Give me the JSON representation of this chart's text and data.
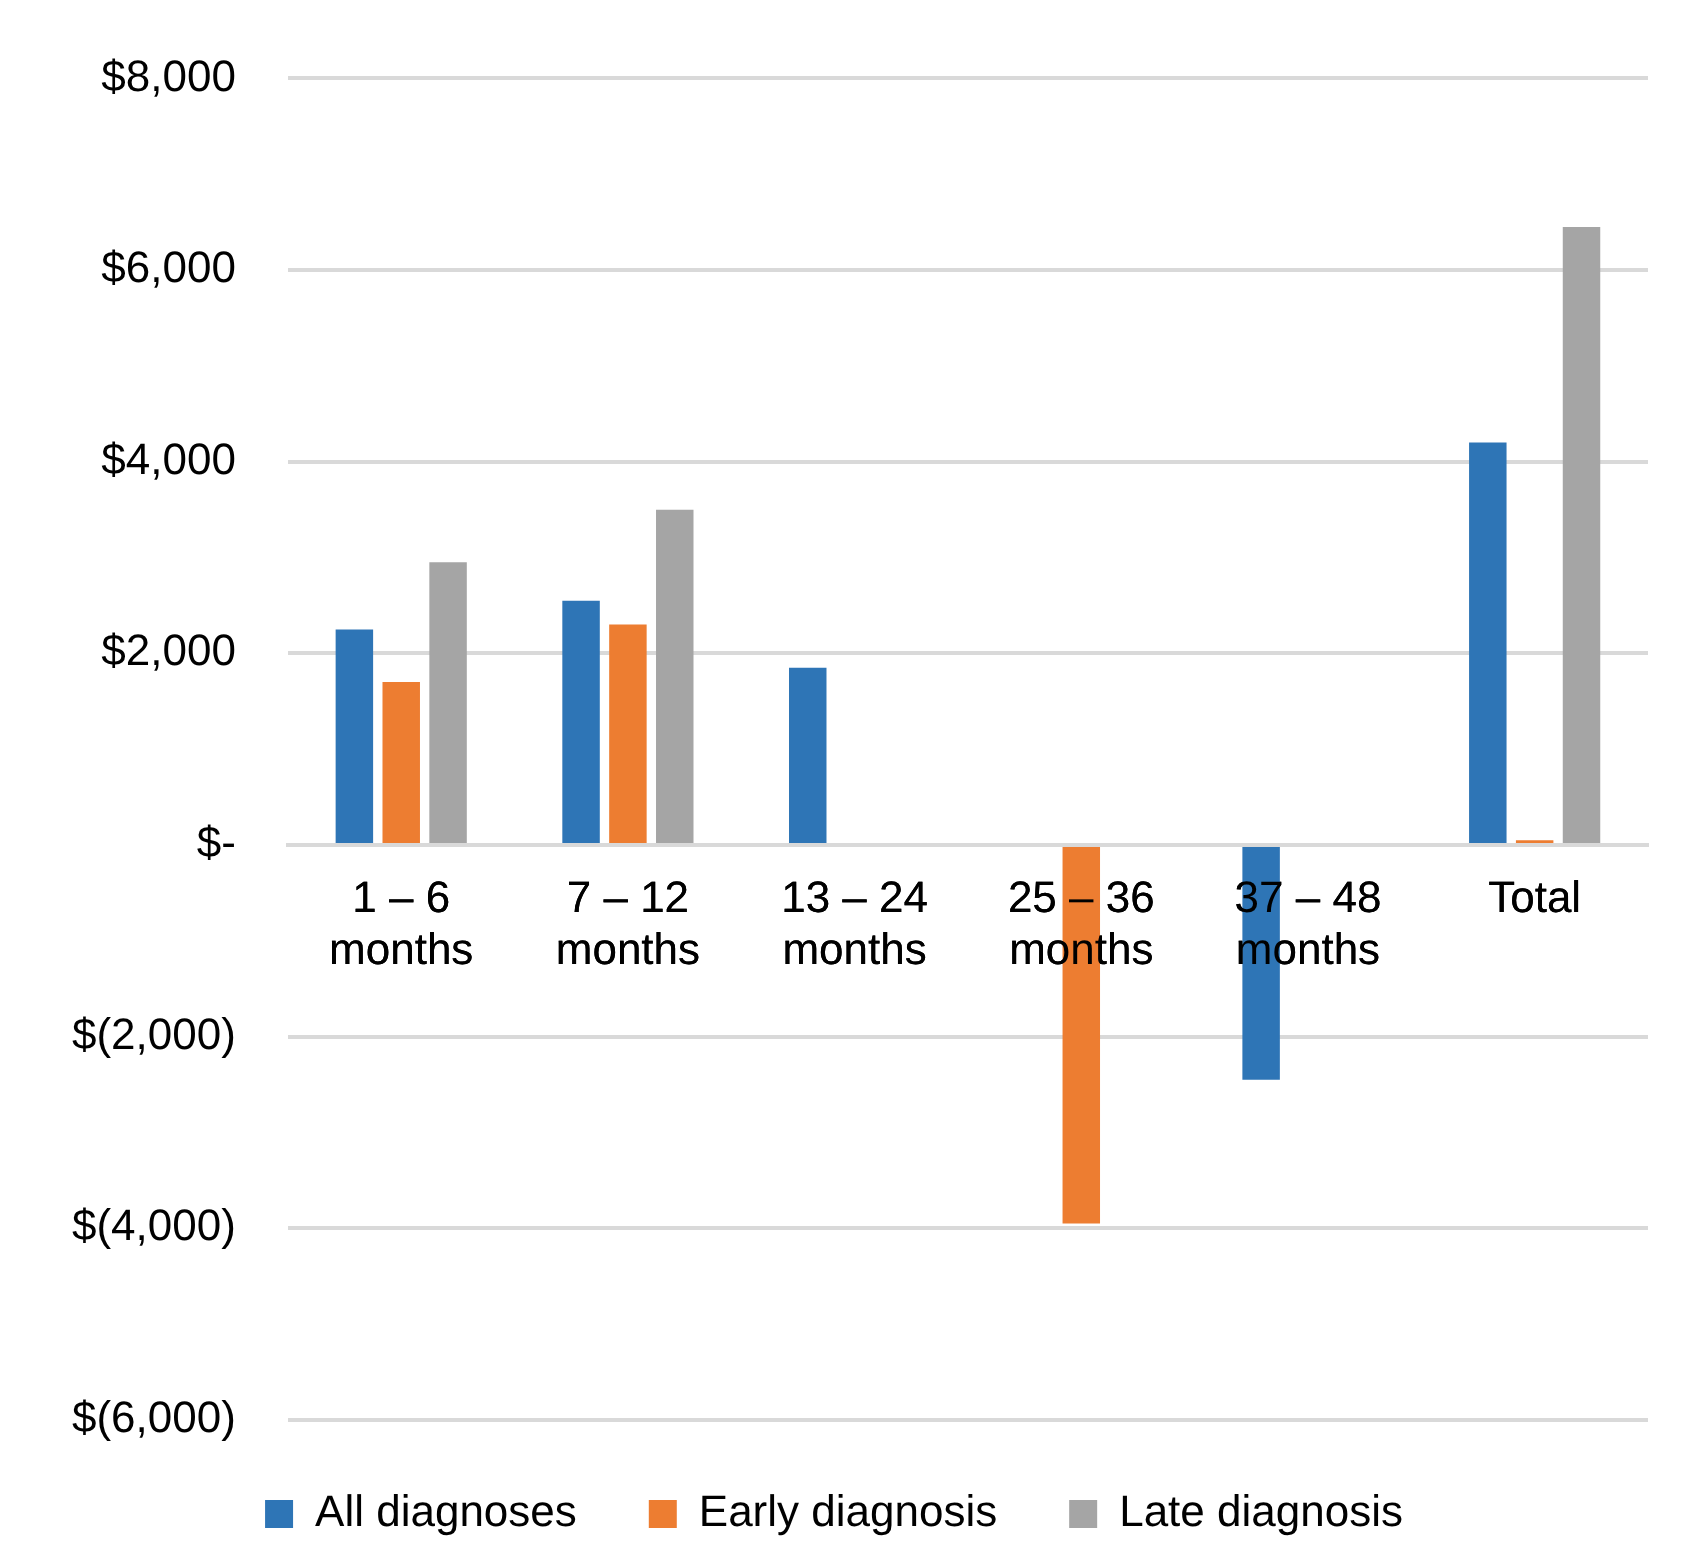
{
  "chart_data": {
    "type": "bar",
    "categories": [
      "1 – 6 months",
      "7 – 12 months",
      "13 – 24 months",
      "25 – 36 months",
      "37 – 48 months",
      "Total"
    ],
    "series": [
      {
        "name": "All diagnoses",
        "color": "#2e75b6",
        "values": [
          2250,
          2550,
          1850,
          null,
          -2450,
          4200
        ]
      },
      {
        "name": "Early diagnosis",
        "color": "#ed7d31",
        "values": [
          1700,
          2300,
          null,
          -3950,
          null,
          50
        ]
      },
      {
        "name": "Late diagnosis",
        "color": "#a5a5a5",
        "values": [
          2950,
          3500,
          null,
          null,
          null,
          6450
        ]
      }
    ],
    "ylim": [
      -6000,
      8000
    ],
    "yticks": [
      {
        "value": -6000,
        "label": "$(6,000)"
      },
      {
        "value": -4000,
        "label": "$(4,000)"
      },
      {
        "value": -2000,
        "label": "$(2,000)"
      },
      {
        "value": 0,
        "label": "$-"
      },
      {
        "value": 2000,
        "label": "$2,000"
      },
      {
        "value": 4000,
        "label": "$4,000"
      },
      {
        "value": 6000,
        "label": "$6,000"
      },
      {
        "value": 8000,
        "label": "$8,000"
      }
    ],
    "grid": "y",
    "legend": "bottom"
  }
}
